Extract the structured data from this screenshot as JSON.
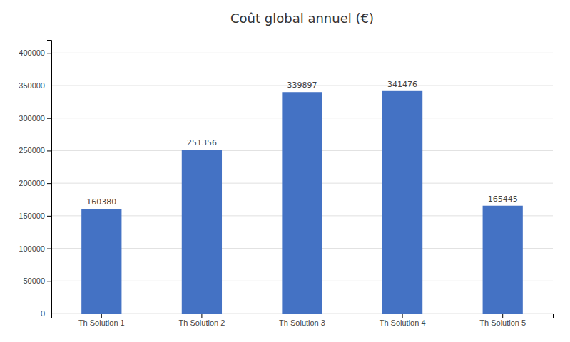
{
  "chart_data": {
    "type": "bar",
    "title": "Coût global annuel (€)",
    "categories": [
      "Th Solution 1",
      "Th Solution 2",
      "Th Solution 3",
      "Th Solution 4",
      "Th Solution 5"
    ],
    "values": [
      160380,
      251356,
      339897,
      341476,
      165445
    ],
    "color": "#4472C4",
    "ylim": [
      0,
      420000
    ],
    "yticks": [
      0,
      50000,
      100000,
      150000,
      200000,
      250000,
      300000,
      350000,
      400000
    ],
    "grid": true,
    "data_labels": true
  }
}
